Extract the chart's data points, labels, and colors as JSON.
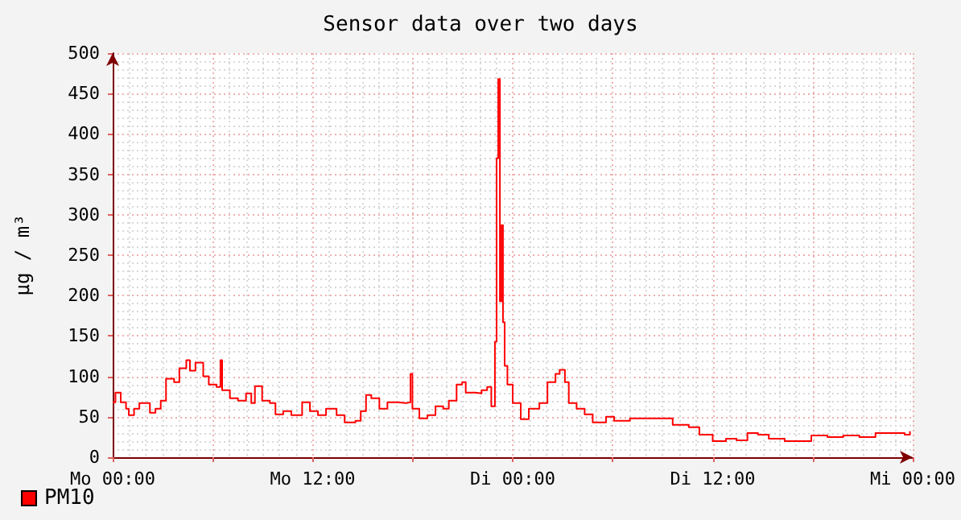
{
  "chart_data": {
    "type": "step",
    "title": "Sensor data over two days",
    "ylabel": "µg / m³",
    "xlim": [
      "--01-01T00:00",
      "--01-03T00:00"
    ],
    "xticks": [
      {
        "value": "--01-01T00:00",
        "label": "Mo 00:00"
      },
      {
        "value": "--01-01T06:00",
        "label": null
      },
      {
        "value": "--01-01T12:00",
        "label": "Mo 12:00"
      },
      {
        "value": "--01-01T18:00",
        "label": null
      },
      {
        "value": "--01-02T00:00",
        "label": "Di 00:00"
      },
      {
        "value": "--01-02T06:00",
        "label": null
      },
      {
        "value": "--01-02T12:00",
        "label": "Di 12:00"
      },
      {
        "value": "--01-02T18:00",
        "label": null
      },
      {
        "value": "--01-03T00:00",
        "label": "Mi 00:00"
      }
    ],
    "ylim": [
      0,
      500
    ],
    "yticks": [
      0,
      50,
      100,
      150,
      200,
      250,
      300,
      350,
      400,
      450,
      500
    ],
    "grid": true,
    "legend": "bottom left",
    "marker": "none",
    "line_style": "solid",
    "series": [
      {
        "name": "PM10",
        "color": "#ff0000",
        "x": [
          "--01-01T00:00",
          "--01-01T00:10",
          "--01-01T00:29",
          "--01-01T00:48",
          "--01-01T00:58",
          "--01-01T01:17",
          "--01-01T01:36",
          "--01-01T01:55",
          "--01-01T02:14",
          "--01-01T02:34",
          "--01-01T02:53",
          "--01-01T03:12",
          "--01-01T03:41",
          "--01-01T04:00",
          "--01-01T04:25",
          "--01-01T04:38",
          "--01-01T04:58",
          "--01-01T05:26",
          "--01-01T05:46",
          "--01-01T06:14",
          "--01-01T06:28",
          "--01-01T06:34",
          "--01-01T07:02",
          "--01-01T07:31",
          "--01-01T08:00",
          "--01-01T08:19",
          "--01-01T08:32",
          "--01-01T08:58",
          "--01-01T09:26",
          "--01-01T09:46",
          "--01-01T10:14",
          "--01-01T10:43",
          "--01-01T11:22",
          "--01-01T11:50",
          "--01-01T12:19",
          "--01-01T12:48",
          "--01-01T13:26",
          "--01-01T13:55",
          "--01-01T14:34",
          "--01-01T14:53",
          "--01-01T15:12",
          "--01-01T15:31",
          "--01-01T16:00",
          "--01-01T16:29",
          "--01-01T17:07",
          "--01-01T17:36",
          "--01-01T17:52",
          "--01-01T17:59",
          "--01-01T18:24",
          "--01-01T18:53",
          "--01-01T19:22",
          "--01-01T19:50",
          "--01-01T20:10",
          "--01-01T20:38",
          "--01-01T20:58",
          "--01-01T21:11",
          "--01-01T21:46",
          "--01-01T22:08",
          "--01-01T22:28",
          "--01-01T22:43",
          "--01-01T22:56",
          "--01-01T23:02",
          "--01-01T23:08",
          "--01-01T23:14",
          "--01-01T23:20",
          "--01-01T23:25",
          "--01-01T23:31",
          "--01-01T23:41",
          "--01-02T00:00",
          "--01-02T00:29",
          "--01-02T00:58",
          "--01-02T01:36",
          "--01-02T02:05",
          "--01-02T02:34",
          "--01-02T02:49",
          "--01-02T03:08",
          "--01-02T03:22",
          "--01-02T03:50",
          "--01-02T04:19",
          "--01-02T04:48",
          "--01-02T05:36",
          "--01-02T06:05",
          "--01-02T07:02",
          "--01-02T08:00",
          "--01-02T08:58",
          "--01-02T09:36",
          "--01-02T10:34",
          "--01-02T11:12",
          "--01-02T12:00",
          "--01-02T12:48",
          "--01-02T13:26",
          "--01-02T14:05",
          "--01-02T14:43",
          "--01-02T15:22",
          "--01-02T16:19",
          "--01-02T17:17",
          "--01-02T17:55",
          "--01-02T18:53",
          "--01-02T19:50",
          "--01-02T20:48",
          "--01-02T21:46",
          "--01-02T22:43",
          "--01-02T23:31",
          "--01-02T23:50"
        ],
        "values": [
          68,
          80,
          68,
          60,
          52,
          60,
          67,
          67,
          55,
          60,
          70,
          97,
          93,
          110,
          120,
          107,
          117,
          100,
          90,
          87,
          120,
          83,
          73,
          70,
          79,
          67,
          88,
          70,
          67,
          53,
          57,
          52,
          68,
          57,
          52,
          60,
          52,
          43,
          45,
          57,
          77,
          73,
          60,
          68,
          67,
          68,
          103,
          60,
          48,
          52,
          63,
          60,
          70,
          90,
          93,
          80,
          79,
          83,
          87,
          63,
          143,
          370,
          468,
          193,
          287,
          167,
          113,
          90,
          67,
          47,
          60,
          67,
          93,
          103,
          108,
          93,
          67,
          60,
          53,
          43,
          50,
          45,
          48,
          48,
          48,
          40,
          37,
          28,
          20,
          23,
          21,
          30,
          28,
          23,
          20,
          20,
          27,
          25,
          27,
          25,
          30,
          30,
          28,
          32
        ]
      }
    ]
  }
}
